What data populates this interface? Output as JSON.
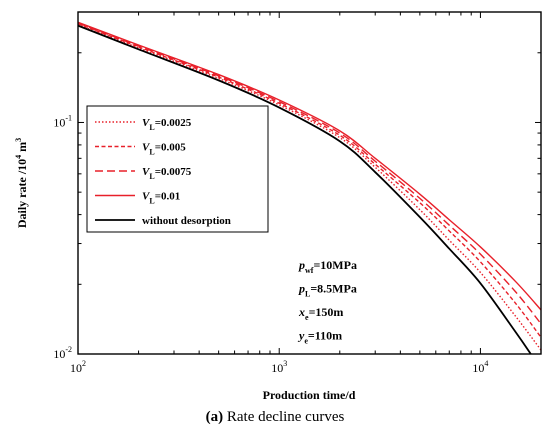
{
  "caption": {
    "label": "(a)",
    "text": "Rate decline curves"
  },
  "chart_data": {
    "type": "line",
    "title": "",
    "xlabel": "Production time/d",
    "ylabel": "Daily rate /10^4 m^3",
    "ylabel_parts": [
      "Daily rate /10",
      "4",
      " m",
      "3"
    ],
    "xscale": "log",
    "yscale": "log",
    "xlim": [
      100,
      20000
    ],
    "ylim": [
      0.01,
      0.3
    ],
    "x_ticks": [
      {
        "value": 100,
        "base": "10",
        "exp": "2"
      },
      {
        "value": 1000,
        "base": "10",
        "exp": "3"
      },
      {
        "value": 10000,
        "base": "10",
        "exp": "4"
      }
    ],
    "y_ticks": [
      {
        "value": 0.01,
        "base": "10",
        "exp": "-2"
      },
      {
        "value": 0.1,
        "base": "10",
        "exp": "-1"
      }
    ],
    "grid": false,
    "legend_position": "center-left",
    "series": [
      {
        "name": "VL=0.0025",
        "name_parts": [
          "V",
          "L",
          "=0.0025"
        ],
        "color": "#e8202a",
        "dash": "dotted",
        "x": [
          100,
          200,
          500,
          1000,
          2000,
          3000,
          5000,
          7000,
          10000,
          15000,
          20000
        ],
        "y": [
          0.265,
          0.21,
          0.155,
          0.119,
          0.086,
          0.064,
          0.042,
          0.031,
          0.0225,
          0.0145,
          0.0104
        ]
      },
      {
        "name": "VL=0.005",
        "name_parts": [
          "V",
          "L",
          "=0.005"
        ],
        "color": "#e8202a",
        "dash": "short-dash",
        "x": [
          100,
          200,
          500,
          1000,
          2000,
          3000,
          5000,
          7000,
          10000,
          15000,
          20000
        ],
        "y": [
          0.267,
          0.212,
          0.157,
          0.121,
          0.088,
          0.066,
          0.045,
          0.034,
          0.025,
          0.0165,
          0.0118
        ]
      },
      {
        "name": "VL=0.0075",
        "name_parts": [
          "V",
          "L",
          "=0.0075"
        ],
        "color": "#e8202a",
        "dash": "long-dash",
        "x": [
          100,
          200,
          500,
          1000,
          2000,
          3000,
          5000,
          7000,
          10000,
          15000,
          20000
        ],
        "y": [
          0.269,
          0.214,
          0.159,
          0.123,
          0.09,
          0.068,
          0.047,
          0.036,
          0.027,
          0.0185,
          0.0135
        ]
      },
      {
        "name": "VL=0.01",
        "name_parts": [
          "V",
          "L",
          "=0.01"
        ],
        "color": "#e8202a",
        "dash": "solid",
        "x": [
          100,
          200,
          500,
          1000,
          2000,
          3000,
          5000,
          7000,
          10000,
          15000,
          20000
        ],
        "y": [
          0.271,
          0.216,
          0.161,
          0.125,
          0.092,
          0.07,
          0.049,
          0.038,
          0.029,
          0.0205,
          0.0155
        ]
      },
      {
        "name": "without desorption",
        "name_parts": [
          "without desorption"
        ],
        "color": "#000000",
        "dash": "solid",
        "x": [
          100,
          200,
          500,
          1000,
          2000,
          3000,
          5000,
          7000,
          10000,
          15000,
          17800
        ],
        "y": [
          0.262,
          0.207,
          0.152,
          0.116,
          0.083,
          0.061,
          0.039,
          0.0285,
          0.0202,
          0.0124,
          0.01
        ]
      }
    ],
    "annotations": [
      {
        "parts": [
          "p",
          "wf",
          "=10MPa"
        ]
      },
      {
        "parts": [
          "p",
          "L",
          "=8.5MPa"
        ]
      },
      {
        "parts": [
          "x",
          "e",
          "=150m"
        ]
      },
      {
        "parts": [
          "y",
          "e",
          "=110m"
        ]
      }
    ]
  }
}
